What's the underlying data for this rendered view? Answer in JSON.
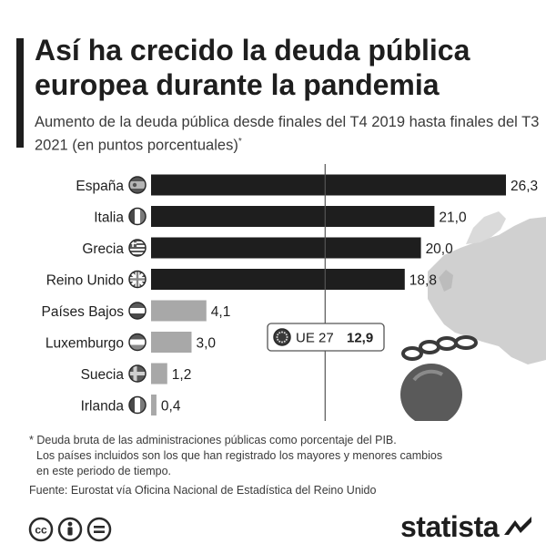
{
  "title": "Así ha crecido la deuda pública europea durante la pandemia",
  "subtitle": "Aumento de la deuda pública desde finales del T4 2019 hasta finales del T3 2021 (en puntos porcentuales)",
  "subtitle_mark": "*",
  "chart_data": {
    "type": "bar",
    "orientation": "horizontal",
    "categories": [
      "España",
      "Italia",
      "Grecia",
      "Reino Unido",
      "Países Bajos",
      "Luxemburgo",
      "Suecia",
      "Irlanda"
    ],
    "values": [
      26.3,
      21.0,
      20.0,
      18.8,
      4.1,
      3.0,
      1.2,
      0.4
    ],
    "value_labels": [
      "26,3",
      "21,0",
      "20,0",
      "18,8",
      "4,1",
      "3,0",
      "1,2",
      "0,4"
    ],
    "bar_colors": [
      "#1e1e1e",
      "#1e1e1e",
      "#1e1e1e",
      "#1e1e1e",
      "#a8a8a8",
      "#a8a8a8",
      "#a8a8a8",
      "#a8a8a8"
    ],
    "flag_icons": [
      "spain-flag-icon",
      "italy-flag-icon",
      "greece-flag-icon",
      "uk-flag-icon",
      "netherlands-flag-icon",
      "luxembourg-flag-icon",
      "sweden-flag-icon",
      "ireland-flag-icon"
    ],
    "reference": {
      "label": "UE 27",
      "value": 12.9,
      "value_label": "12,9",
      "icon": "eu-flag-icon"
    },
    "xlim": [
      0,
      26.3
    ],
    "decorations": [
      "europe-map-icon",
      "ball-and-chain-icon"
    ]
  },
  "footnote": {
    "marker": "*",
    "line1": "Deuda bruta de las administraciones públicas como porcentaje del PIB.",
    "line2": "Los países incluidos son los que han registrado los mayores y menores cambios",
    "line3": "en este periodo de tiempo."
  },
  "source": "Fuente: Eurostat vía Oficina Nacional de Estadística del Reino Unido",
  "license_icons": [
    "cc-icon",
    "by-icon",
    "nd-icon"
  ],
  "brand": {
    "name": "statista"
  }
}
